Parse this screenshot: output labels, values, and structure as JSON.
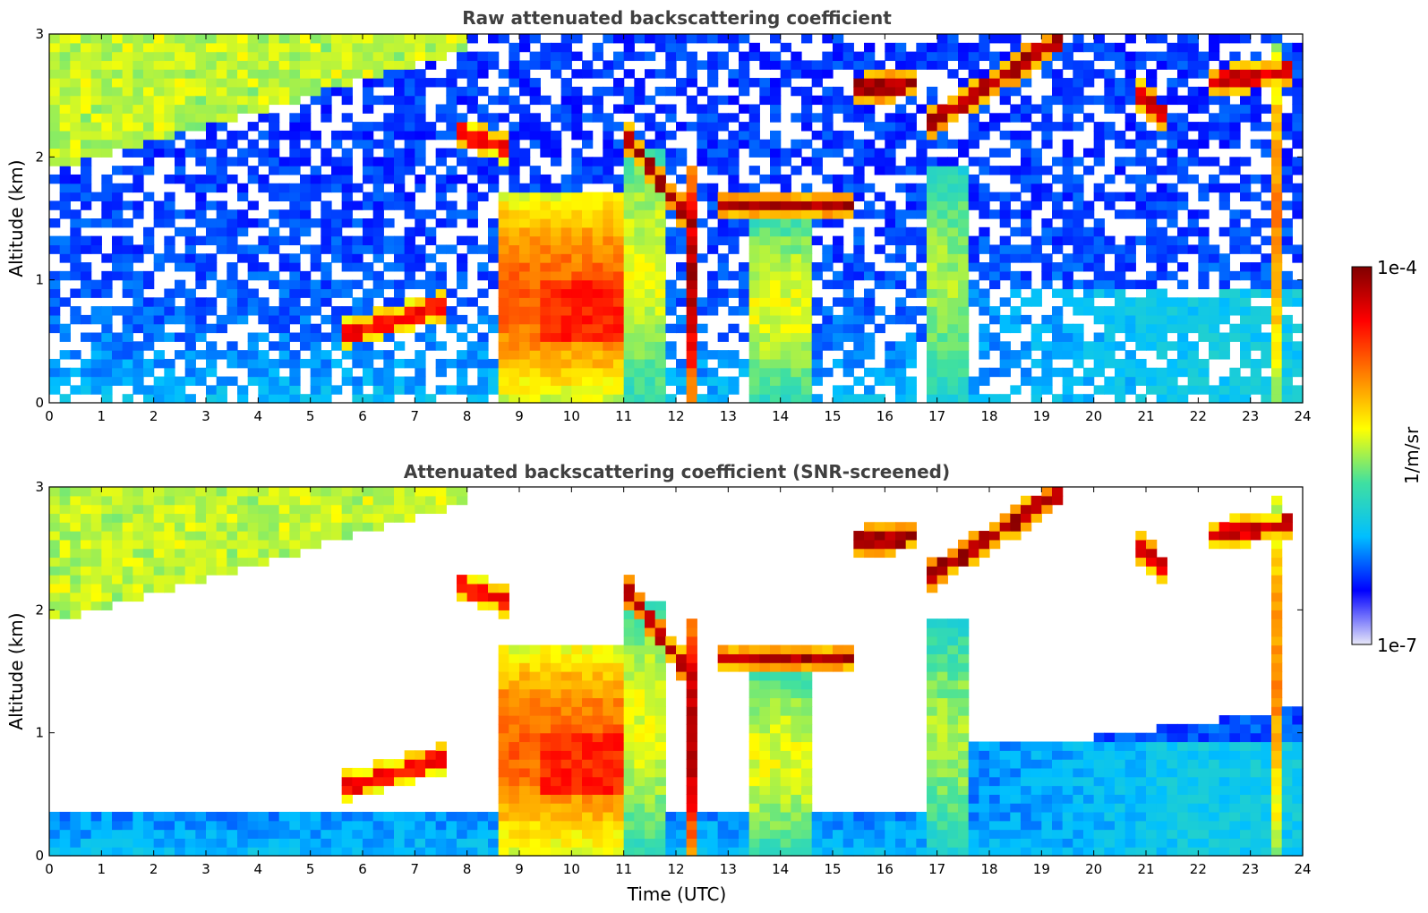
{
  "chart_data": [
    {
      "type": "heatmap",
      "title": "Raw attenuated backscattering coefficient",
      "xlabel": "",
      "ylabel": "Altitude (km)",
      "xlim": [
        0,
        24
      ],
      "ylim": [
        0,
        3
      ],
      "xticks": [
        "0",
        "1",
        "2",
        "3",
        "4",
        "5",
        "6",
        "7",
        "8",
        "9",
        "10",
        "11",
        "12",
        "13",
        "14",
        "15",
        "16",
        "17",
        "18",
        "19",
        "20",
        "21",
        "22",
        "23",
        "24"
      ],
      "yticks": [
        "0",
        "1",
        "2",
        "3"
      ],
      "screened": false
    },
    {
      "type": "heatmap",
      "title": "Attenuated backscattering coefficient (SNR-screened)",
      "xlabel": "Time (UTC)",
      "ylabel": "Altitude (km)",
      "xlim": [
        0,
        24
      ],
      "ylim": [
        0,
        3
      ],
      "xticks": [
        "0",
        "1",
        "2",
        "3",
        "4",
        "5",
        "6",
        "7",
        "8",
        "9",
        "10",
        "11",
        "12",
        "13",
        "14",
        "15",
        "16",
        "17",
        "18",
        "19",
        "20",
        "21",
        "22",
        "23",
        "24"
      ],
      "yticks": [
        "0",
        "1",
        "2",
        "3"
      ],
      "screened": true
    }
  ],
  "colorbar": {
    "label": "1/m/sr",
    "min_label": "1e-7",
    "max_label": "1e-4",
    "scale": "log",
    "colormap": "jet",
    "colors": [
      "#e8e8f8",
      "#0000ff",
      "#00bfff",
      "#40e0a0",
      "#ffff00",
      "#ff8000",
      "#ff0000",
      "#800000"
    ]
  },
  "features": {
    "boundary_layer_top_km": 0.35,
    "elevated_layers": [
      {
        "t0": 5.6,
        "t1": 7.6,
        "z0": 0.55,
        "z1": 0.8,
        "level": 0.85
      },
      {
        "t0": 7.9,
        "t1": 8.8,
        "z0": 2.2,
        "z1": 2.05,
        "level": 0.85
      },
      {
        "t0": 11.0,
        "t1": 12.4,
        "z0": 2.2,
        "z1": 1.4,
        "level": 0.95
      },
      {
        "t0": 12.8,
        "t1": 15.4,
        "z0": 1.6,
        "z1": 1.6,
        "level": 0.95
      },
      {
        "t0": 15.3,
        "t1": 16.6,
        "z0": 2.55,
        "z1": 2.6,
        "level": 0.95
      },
      {
        "t0": 16.8,
        "t1": 19.3,
        "z0": 2.25,
        "z1": 2.95,
        "level": 0.95
      },
      {
        "t0": 20.9,
        "t1": 21.4,
        "z0": 2.5,
        "z1": 2.3,
        "level": 0.9
      },
      {
        "t0": 22.1,
        "t1": 23.8,
        "z0": 2.6,
        "z1": 2.7,
        "level": 0.9
      }
    ],
    "precip_shafts": [
      {
        "t0": 8.7,
        "t1": 11.0,
        "ztop": 1.7,
        "level": 0.75
      },
      {
        "t0": 11.0,
        "t1": 11.8,
        "ztop": 2.1,
        "level": 0.55
      },
      {
        "t0": 12.15,
        "t1": 12.4,
        "ztop": 1.9,
        "level": 0.95
      },
      {
        "t0": 13.5,
        "t1": 14.6,
        "ztop": 1.5,
        "level": 0.55
      },
      {
        "t0": 16.8,
        "t1": 17.7,
        "ztop": 1.9,
        "level": 0.5
      },
      {
        "t0": 23.4,
        "t1": 23.55,
        "ztop": 2.9,
        "level": 0.7
      }
    ]
  }
}
